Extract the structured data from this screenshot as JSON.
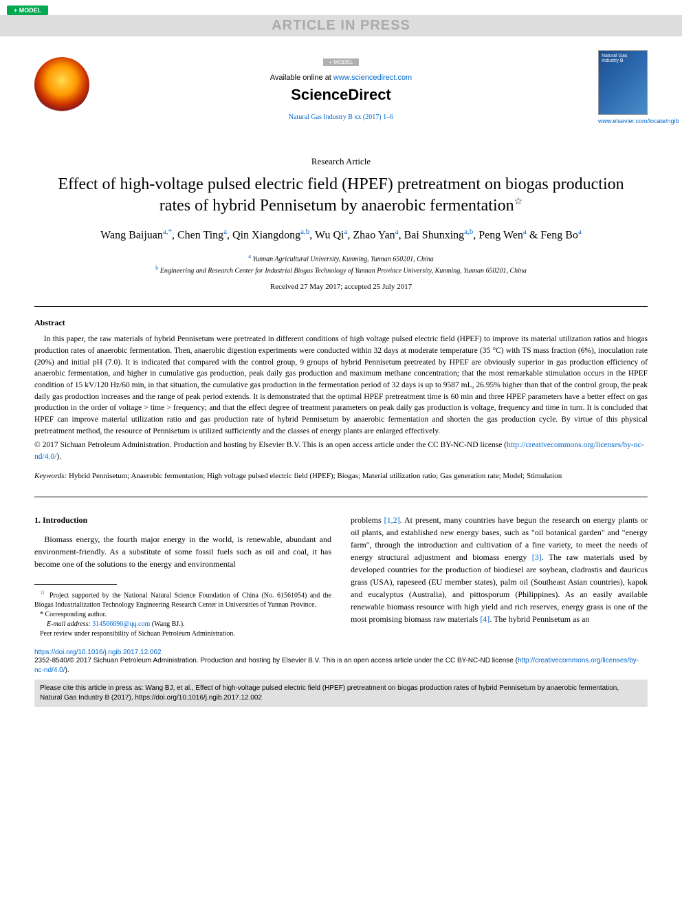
{
  "badge_model": "+ MODEL",
  "press_banner": "ARTICLE IN PRESS",
  "header": {
    "model_center": "+ MODEL",
    "available_prefix": "Available online at ",
    "available_url": "www.sciencedirect.com",
    "brand": "ScienceDirect",
    "journal_ref": "Natural Gas Industry B xx (2017) 1–6",
    "cover_url": "www.elsevier.com/locate/ngib"
  },
  "article_type": "Research Article",
  "title": "Effect of high-voltage pulsed electric field (HPEF) pretreatment on biogas production rates of hybrid Pennisetum by anaerobic fermentation",
  "title_note_marker": "☆",
  "authors_html": "Wang Baijuan<sup>a,*</sup>, Chen Ting<sup>a</sup>, Qin Xiangdong<sup>a,b</sup>, Wu Qi<sup>a</sup>, Zhao Yan<sup>a</sup>, Bai Shunxing<sup>a,b</sup>, Peng Wen<sup>a</sup> & Feng Bo<sup>a</sup>",
  "affiliations": {
    "a": "Yunnan Agricultural University, Kunming, Yunnan 650201, China",
    "b": "Engineering and Research Center for Industrial Biogas Technology of Yunnan Province University, Kunming, Yunnan 650201, China"
  },
  "dates": "Received 27 May 2017; accepted 25 July 2017",
  "abstract": {
    "heading": "Abstract",
    "body": "In this paper, the raw materials of hybrid Pennisetum were pretreated in different conditions of high voltage pulsed electric field (HPEF) to improve its material utilization ratios and biogas production rates of anaerobic fermentation. Then, anaerobic digestion experiments were conducted within 32 days at moderate temperature (35 °C) with TS mass fraction (6%), inoculation rate (20%) and initial pH (7.0). It is indicated that compared with the control group, 9 groups of hybrid Pennisetum pretreated by HPEF are obviously superior in gas production efficiency of anaerobic fermentation, and higher in cumulative gas production, peak daily gas production and maximum methane concentration; that the most remarkable stimulation occurs in the HPEF condition of 15 kV/120 Hz/60 min, in that situation, the cumulative gas production in the fermentation period of 32 days is up to 9587 mL, 26.95% higher than that of the control group, the peak daily gas production increases and the range of peak period extends. It is demonstrated that the optimal HPEF pretreatment time is 60 min and three HPEF parameters have a better effect on gas production in the order of voltage > time > frequency; and that the effect degree of treatment parameters on peak daily gas production is voltage, frequency and time in turn. It is concluded that HPEF can improve material utilization ratio and gas production rate of hybrid Pennisetum by anaerobic fermentation and shorten the gas production cycle. By virtue of this physical pretreatment method, the resource of Pennisetum is utilized sufficiently and the classes of energy plants are enlarged effectively."
  },
  "copyright": {
    "text": "© 2017 Sichuan Petroleum Administration. Production and hosting by Elsevier B.V. This is an open access article under the CC BY-NC-ND license (",
    "url": "http://creativecommons.org/licenses/by-nc-nd/4.0/",
    "suffix": ")."
  },
  "keywords": {
    "label": "Keywords:",
    "list": "Hybrid Pennisetum; Anaerobic fermentation; High voltage pulsed electric field (HPEF); Biogas; Material utilization ratio; Gas generation rate; Model; Stimulation"
  },
  "intro": {
    "heading": "1. Introduction",
    "col1": "Biomass energy, the fourth major energy in the world, is renewable, abundant and environment-friendly. As a substitute of some fossil fuels such as oil and coal, it has become one of the solutions to the energy and environmental",
    "col2_part1": "problems ",
    "col2_ref1": "[1,2]",
    "col2_part2": ". At present, many countries have begun the research on energy plants or oil plants, and established new energy bases, such as \"oil botanical garden\" and \"energy farm\", through the introduction and cultivation of a fine variety, to meet the needs of energy structural adjustment and biomass energy ",
    "col2_ref2": "[3]",
    "col2_part3": ". The raw materials used by developed countries for the production of biodiesel are soybean, cladrastis and dauricus grass (USA), rapeseed (EU member states), palm oil (Southeast Asian countries), kapok and eucalyptus (Australia), and pittosporum (Philippines). As an easily available renewable biomass resource with high yield and rich reserves, energy grass is one of the most promising biomass raw materials ",
    "col2_ref3": "[4]",
    "col2_part4": ". The hybrid Pennisetum as an"
  },
  "footnotes": {
    "proj": "Project supported by the National Natural Science Foundation of China (No. 61561054) and the Biogas Industrialization Technology Engineering Research Center in Universities of Yunnan Province.",
    "corr": "Corresponding author.",
    "email_label": "E-mail address: ",
    "email": "314566690@qq.com",
    "email_suffix": " (Wang BJ.).",
    "peer": "Peer review under responsibility of Sichuan Petroleum Administration."
  },
  "doi": "https://doi.org/10.1016/j.ngib.2017.12.002",
  "license_bottom": {
    "text": "2352-8540/© 2017 Sichuan Petroleum Administration. Production and hosting by Elsevier B.V. This is an open access article under the CC BY-NC-ND license (",
    "url": "http://creativecommons.org/licenses/by-nc-nd/4.0/",
    "suffix": ")."
  },
  "cite_box": "Please cite this article in press as: Wang BJ, et al., Effect of high-voltage pulsed electric field (HPEF) pretreatment on biogas production rates of hybrid Pennisetum by anaerobic fermentation, Natural Gas Industry B (2017), https://doi.org/10.1016/j.ngib.2017.12.002",
  "colors": {
    "link": "#0066cc",
    "badge_bg": "#00a84f",
    "banner_bg": "#dddddd",
    "banner_fg": "#aaaaaa",
    "cite_bg": "#e0e0e0"
  }
}
